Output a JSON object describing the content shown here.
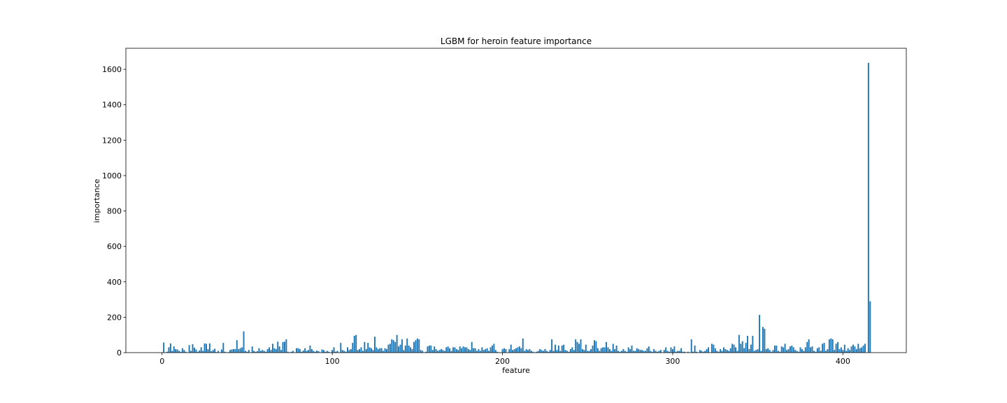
{
  "chart_data": {
    "type": "bar",
    "title": "LGBM for heroin feature importance",
    "xlabel": "feature",
    "ylabel": "importance",
    "color": "#1f77b4",
    "bar_width": 0.8,
    "xlim": [
      -21.24,
      437.24
    ],
    "ylim": [
      0,
      1719
    ],
    "xticks": [
      0,
      100,
      200,
      300,
      400
    ],
    "yticks": [
      0,
      200,
      400,
      600,
      800,
      1000,
      1200,
      1400,
      1600
    ],
    "x": [
      0,
      1,
      2,
      3,
      4,
      5,
      6,
      7,
      8,
      9,
      10,
      11,
      12,
      13,
      14,
      15,
      16,
      17,
      18,
      19,
      20,
      21,
      22,
      23,
      24,
      25,
      26,
      27,
      28,
      29,
      30,
      31,
      32,
      33,
      34,
      35,
      36,
      37,
      38,
      39,
      40,
      41,
      42,
      43,
      44,
      45,
      46,
      47,
      48,
      49,
      50,
      51,
      52,
      53,
      54,
      55,
      56,
      57,
      58,
      59,
      60,
      61,
      62,
      63,
      64,
      65,
      66,
      67,
      68,
      69,
      70,
      71,
      72,
      73,
      74,
      75,
      76,
      77,
      78,
      79,
      80,
      81,
      82,
      83,
      84,
      85,
      86,
      87,
      88,
      89,
      90,
      91,
      92,
      93,
      94,
      95,
      96,
      97,
      98,
      99,
      100,
      101,
      102,
      103,
      104,
      105,
      106,
      107,
      108,
      109,
      110,
      111,
      112,
      113,
      114,
      115,
      116,
      117,
      118,
      119,
      120,
      121,
      122,
      123,
      124,
      125,
      126,
      127,
      128,
      129,
      130,
      131,
      132,
      133,
      134,
      135,
      136,
      137,
      138,
      139,
      140,
      141,
      142,
      143,
      144,
      145,
      146,
      147,
      148,
      149,
      150,
      151,
      152,
      153,
      154,
      155,
      156,
      157,
      158,
      159,
      160,
      161,
      162,
      163,
      164,
      165,
      166,
      167,
      168,
      169,
      170,
      171,
      172,
      173,
      174,
      175,
      176,
      177,
      178,
      179,
      180,
      181,
      182,
      183,
      184,
      185,
      186,
      187,
      188,
      189,
      190,
      191,
      192,
      193,
      194,
      195,
      196,
      197,
      198,
      199,
      200,
      201,
      202,
      203,
      204,
      205,
      206,
      207,
      208,
      209,
      210,
      211,
      212,
      213,
      214,
      215,
      216,
      217,
      218,
      219,
      220,
      221,
      222,
      223,
      224,
      225,
      226,
      227,
      228,
      229,
      230,
      231,
      232,
      233,
      234,
      235,
      236,
      237,
      238,
      239,
      240,
      241,
      242,
      243,
      244,
      245,
      246,
      247,
      248,
      249,
      250,
      251,
      252,
      253,
      254,
      255,
      256,
      257,
      258,
      259,
      260,
      261,
      262,
      263,
      264,
      265,
      266,
      267,
      268,
      269,
      270,
      271,
      272,
      273,
      274,
      275,
      276,
      277,
      278,
      279,
      280,
      281,
      282,
      283,
      284,
      285,
      286,
      287,
      288,
      289,
      290,
      291,
      292,
      293,
      294,
      295,
      296,
      297,
      298,
      299,
      300,
      301,
      302,
      303,
      304,
      305,
      306,
      307,
      308,
      309,
      310,
      311,
      312,
      313,
      314,
      315,
      316,
      317,
      318,
      319,
      320,
      321,
      322,
      323,
      324,
      325,
      326,
      327,
      328,
      329,
      330,
      331,
      332,
      333,
      334,
      335,
      336,
      337,
      338,
      339,
      340,
      341,
      342,
      343,
      344,
      345,
      346,
      347,
      348,
      349,
      350,
      351,
      352,
      353,
      354,
      355,
      356,
      357,
      358,
      359,
      360,
      361,
      362,
      363,
      364,
      365,
      366,
      367,
      368,
      369,
      370,
      371,
      372,
      373,
      374,
      375,
      376,
      377,
      378,
      379,
      380,
      381,
      382,
      383,
      384,
      385,
      386,
      387,
      388,
      389,
      390,
      391,
      392,
      393,
      394,
      395,
      396,
      397,
      398,
      399,
      400,
      401,
      402,
      403,
      404,
      405,
      406,
      407,
      408,
      409,
      410,
      411,
      412,
      413,
      414,
      415,
      416
    ],
    "values": [
      0,
      57,
      0,
      5,
      30,
      52,
      10,
      35,
      20,
      18,
      10,
      5,
      25,
      15,
      5,
      0,
      42,
      10,
      48,
      28,
      18,
      5,
      12,
      30,
      10,
      52,
      50,
      20,
      52,
      8,
      15,
      22,
      3,
      10,
      0,
      18,
      55,
      5,
      0,
      3,
      15,
      18,
      20,
      20,
      70,
      20,
      25,
      30,
      120,
      10,
      5,
      15,
      0,
      35,
      10,
      5,
      8,
      25,
      10,
      15,
      10,
      5,
      20,
      30,
      15,
      50,
      25,
      20,
      62,
      35,
      15,
      60,
      62,
      75,
      5,
      0,
      5,
      10,
      0,
      25,
      25,
      20,
      5,
      12,
      25,
      10,
      15,
      40,
      20,
      10,
      5,
      12,
      8,
      0,
      18,
      15,
      5,
      10,
      5,
      0,
      15,
      30,
      5,
      10,
      0,
      55,
      15,
      10,
      5,
      30,
      15,
      20,
      55,
      95,
      100,
      15,
      20,
      30,
      10,
      60,
      20,
      55,
      30,
      25,
      15,
      90,
      30,
      20,
      25,
      25,
      10,
      25,
      20,
      45,
      50,
      75,
      70,
      60,
      100,
      35,
      45,
      75,
      15,
      40,
      80,
      40,
      30,
      20,
      60,
      70,
      80,
      75,
      15,
      10,
      0,
      5,
      35,
      40,
      40,
      15,
      35,
      20,
      10,
      15,
      20,
      15,
      10,
      30,
      35,
      25,
      10,
      30,
      30,
      20,
      15,
      35,
      25,
      35,
      30,
      30,
      20,
      15,
      60,
      25,
      25,
      10,
      20,
      10,
      30,
      15,
      20,
      25,
      10,
      30,
      40,
      50,
      15,
      5,
      0,
      0,
      20,
      25,
      20,
      0,
      20,
      45,
      15,
      20,
      25,
      30,
      35,
      25,
      80,
      10,
      20,
      15,
      20,
      10,
      5,
      0,
      5,
      10,
      20,
      15,
      10,
      20,
      10,
      5,
      15,
      75,
      10,
      45,
      15,
      40,
      10,
      40,
      45,
      15,
      10,
      5,
      20,
      30,
      15,
      75,
      60,
      50,
      75,
      20,
      15,
      45,
      10,
      10,
      20,
      40,
      70,
      65,
      25,
      10,
      25,
      30,
      30,
      60,
      30,
      20,
      10,
      50,
      20,
      40,
      10,
      5,
      10,
      20,
      10,
      5,
      30,
      20,
      40,
      10,
      10,
      25,
      20,
      15,
      15,
      10,
      10,
      25,
      35,
      10,
      5,
      20,
      10,
      5,
      10,
      15,
      0,
      15,
      30,
      10,
      5,
      30,
      20,
      35,
      5,
      10,
      10,
      25,
      5,
      5,
      0,
      5,
      0,
      75,
      5,
      40,
      5,
      0,
      15,
      10,
      5,
      10,
      20,
      30,
      0,
      50,
      45,
      25,
      10,
      5,
      20,
      10,
      30,
      20,
      15,
      10,
      25,
      50,
      45,
      30,
      10,
      100,
      50,
      65,
      25,
      55,
      95,
      20,
      45,
      95,
      10,
      15,
      20,
      213,
      10,
      145,
      135,
      20,
      25,
      15,
      5,
      15,
      40,
      40,
      10,
      5,
      35,
      30,
      50,
      15,
      20,
      35,
      40,
      30,
      15,
      10,
      5,
      30,
      20,
      10,
      30,
      60,
      75,
      30,
      35,
      10,
      5,
      25,
      30,
      10,
      50,
      55,
      10,
      20,
      75,
      80,
      75,
      15,
      50,
      60,
      20,
      30,
      15,
      45,
      10,
      25,
      15,
      35,
      45,
      35,
      20,
      50,
      25,
      30,
      40,
      50,
      0,
      1637,
      290
    ]
  }
}
